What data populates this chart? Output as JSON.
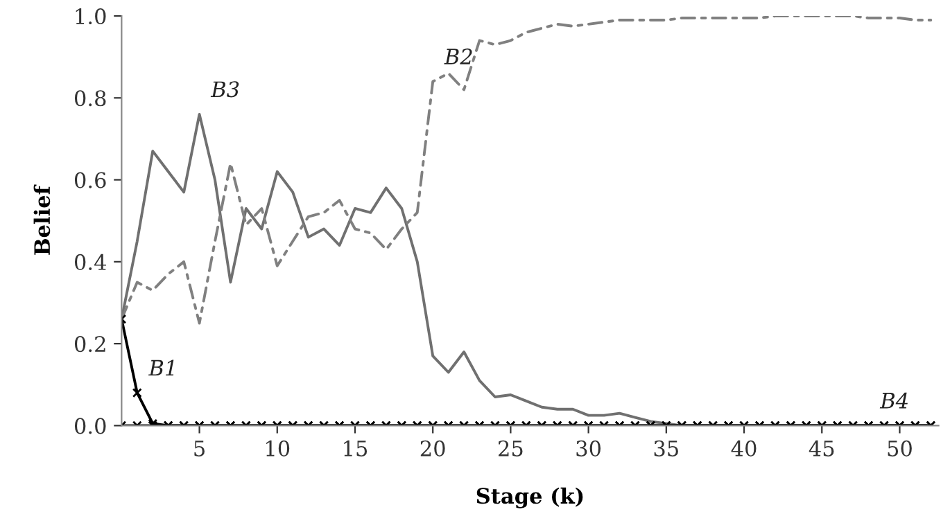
{
  "chart_data": {
    "type": "line",
    "xlabel": "Stage (k)",
    "ylabel": "Belief",
    "x": [
      0,
      1,
      2,
      3,
      4,
      5,
      6,
      7,
      8,
      9,
      10,
      11,
      12,
      13,
      14,
      15,
      16,
      17,
      18,
      19,
      20,
      21,
      22,
      23,
      24,
      25,
      26,
      27,
      28,
      29,
      30,
      31,
      32,
      33,
      34,
      35,
      36,
      37,
      38,
      39,
      40,
      41,
      42,
      43,
      44,
      45,
      46,
      47,
      48,
      49,
      50,
      51,
      52
    ],
    "series": [
      {
        "color": "#707070",
        "line_style": "solid",
        "marker": "none",
        "values": [
          0.26,
          0.45,
          0.67,
          0.62,
          0.57,
          0.76,
          0.6,
          0.35,
          0.53,
          0.48,
          0.62,
          0.57,
          0.46,
          0.48,
          0.44,
          0.53,
          0.52,
          0.58,
          0.53,
          0.4,
          0.17,
          0.13,
          0.18,
          0.11,
          0.07,
          0.075,
          0.06,
          0.045,
          0.04,
          0.04,
          0.025,
          0.025,
          0.03,
          0.02,
          0.01,
          0.005,
          0,
          0,
          0,
          0,
          0,
          0,
          0,
          0,
          0,
          0,
          0,
          0,
          0,
          0,
          0,
          0,
          0
        ]
      },
      {
        "color": "#808080",
        "line_style": "dashdot",
        "marker": "none",
        "values": [
          0.26,
          0.35,
          0.33,
          0.37,
          0.4,
          0.25,
          0.45,
          0.64,
          0.49,
          0.53,
          0.39,
          0.45,
          0.51,
          0.52,
          0.55,
          0.48,
          0.47,
          0.43,
          0.48,
          0.52,
          0.84,
          0.86,
          0.82,
          0.94,
          0.93,
          0.94,
          0.96,
          0.97,
          0.98,
          0.975,
          0.98,
          0.985,
          0.99,
          0.99,
          0.99,
          0.99,
          0.995,
          0.995,
          0.995,
          0.995,
          0.995,
          0.995,
          1.0,
          1.0,
          1.0,
          1.0,
          1.0,
          1.0,
          0.995,
          0.995,
          0.995,
          0.99,
          0.99
        ]
      },
      {
        "color": "#000000",
        "line_style": "solid",
        "marker": "cross",
        "values": [
          0.26,
          0.08,
          0.005,
          0,
          0,
          0,
          0,
          0,
          0,
          0,
          0,
          0,
          0,
          0,
          0,
          0,
          0,
          0,
          0,
          0,
          0,
          0,
          0,
          0,
          0,
          0,
          0,
          0,
          0,
          0,
          0,
          0,
          0,
          0,
          0,
          0,
          0,
          0,
          0,
          0,
          0,
          0,
          0,
          0,
          0,
          0,
          0,
          0,
          0,
          0,
          0,
          0,
          0
        ]
      },
      {
        "color": "#000000",
        "line_style": "solid",
        "marker": "cross",
        "values": [
          0,
          0,
          0,
          0,
          0,
          0,
          0,
          0,
          0,
          0,
          0,
          0,
          0,
          0,
          0,
          0,
          0,
          0,
          0,
          0,
          0,
          0,
          0,
          0,
          0,
          0,
          0,
          0,
          0,
          0,
          0,
          0,
          0,
          0,
          0,
          0,
          0,
          0,
          0,
          0,
          0,
          0,
          0,
          0,
          0,
          0,
          0,
          0,
          0,
          0,
          0,
          0,
          0
        ]
      }
    ],
    "annotations": [
      {
        "text": "B1",
        "x": 1,
        "y": 0.08
      },
      {
        "text": "B2",
        "x": 20,
        "y": 0.84
      },
      {
        "text": "B3",
        "x": 5,
        "y": 0.76
      },
      {
        "text": "B4",
        "x": 48,
        "y": 0
      }
    ],
    "xlim": [
      0,
      52.5
    ],
    "ylim": [
      0,
      1.0
    ],
    "xticks": [
      5,
      10,
      15,
      20,
      25,
      30,
      35,
      40,
      45,
      50
    ],
    "yticks": [
      {
        "value": 0,
        "label": "0.0"
      },
      {
        "value": 0.2,
        "label": "0.2"
      },
      {
        "value": 0.4,
        "label": "0.4"
      },
      {
        "value": 0.6,
        "label": "0.6"
      },
      {
        "value": 0.8,
        "label": "0.8"
      },
      {
        "value": 1.0,
        "label": "1.0"
      }
    ],
    "grid": false,
    "legend": false
  }
}
